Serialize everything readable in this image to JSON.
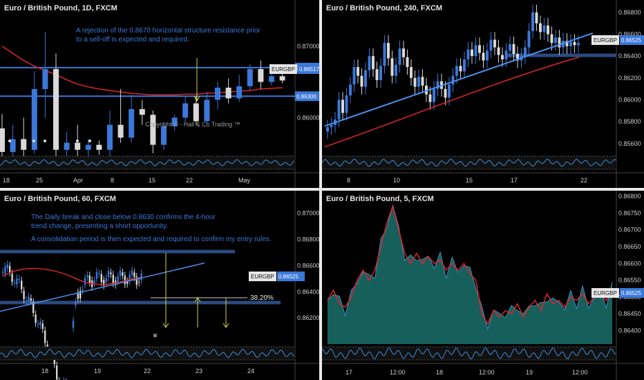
{
  "panels": [
    {
      "title": "Euro / British Pound, 1D, FXCM",
      "notes": [
        "A rejection of the 0.8670 horizontal structure resistance prior",
        "to a sell-off is expected and required."
      ],
      "copyright": "Copyright © - Hall & Co Trading ™"
    },
    {
      "title": "Euro / British Pound, 240, FXCM"
    },
    {
      "title": "Euro / British Pound, 60, FXCM",
      "notes": [
        "The Daily break and close below 0.8630 confirms the 4-hour",
        "trend change, presenting a short opportunity.",
        "",
        "A consolidation period is then expected and required to confirm my entry rules."
      ],
      "fib_label": "38.20%"
    },
    {
      "title": "Euro / British Pound, 5, FXCM"
    }
  ],
  "colors": {
    "background": "#000000",
    "bull_candle": "#3b78d9",
    "bear_candle": "#d8d8d8",
    "moving_average": "#e0242a",
    "trendline": "#4a90f0",
    "level_line": "#3b78d9",
    "zone": "#2a4a80",
    "arrow": "#d6d63a",
    "area_fill": "#1f7f7a",
    "area_line": "#3b8fc4",
    "oscillator": "#3b8fe0",
    "axis_text": "#cfcfcf",
    "label_bg": "#3b78d9"
  },
  "chart_data": [
    {
      "type": "candlestick",
      "title": "Euro / British Pound, 1D, FXCM",
      "x_tick_labels": [
        "18",
        "25",
        "Apr",
        "8",
        "15",
        "22",
        "May"
      ],
      "y_tick_labels": [
        "0.87000",
        "0.86000"
      ],
      "ylim": [
        0.855,
        0.8755
      ],
      "levels": [
        {
          "label": "0.86700",
          "value": 0.867
        },
        {
          "label": "0.86300",
          "value": 0.863
        }
      ],
      "price_label": {
        "text": "EURGBP",
        "value": "0.86517"
      },
      "candles": [
        [
          0.8585,
          0.8552,
          0.8605,
          0.854
        ],
        [
          0.8552,
          0.857,
          0.859,
          0.854
        ],
        [
          0.857,
          0.8555,
          0.86,
          0.8545
        ],
        [
          0.8555,
          0.864,
          0.8665,
          0.855
        ],
        [
          0.864,
          0.8668,
          0.872,
          0.86
        ],
        [
          0.8668,
          0.8555,
          0.869,
          0.854
        ],
        [
          0.8555,
          0.8565,
          0.858,
          0.8545
        ],
        [
          0.8565,
          0.8555,
          0.859,
          0.854
        ],
        [
          0.8555,
          0.8562,
          0.857,
          0.8545
        ],
        [
          0.8562,
          0.8555,
          0.8568,
          0.8548
        ],
        [
          0.8555,
          0.859,
          0.861,
          0.8545
        ],
        [
          0.859,
          0.8572,
          0.864,
          0.8565
        ],
        [
          0.8572,
          0.8612,
          0.8632,
          0.8565
        ],
        [
          0.8612,
          0.8604,
          0.8625,
          0.859
        ],
        [
          0.8604,
          0.8562,
          0.861,
          0.855
        ],
        [
          0.8562,
          0.8588,
          0.8594,
          0.8555
        ],
        [
          0.8588,
          0.86,
          0.8604,
          0.8582
        ],
        [
          0.86,
          0.862,
          0.863,
          0.8592
        ],
        [
          0.862,
          0.8595,
          0.863,
          0.859
        ],
        [
          0.8595,
          0.8625,
          0.8636,
          0.8592
        ],
        [
          0.8625,
          0.8642,
          0.865,
          0.8612
        ],
        [
          0.8642,
          0.8627,
          0.8655,
          0.862
        ],
        [
          0.8627,
          0.8644,
          0.866,
          0.8622
        ],
        [
          0.8644,
          0.8668,
          0.8675,
          0.8638
        ],
        [
          0.8668,
          0.865,
          0.868,
          0.864
        ],
        [
          0.865,
          0.8658,
          0.8662,
          0.8645
        ],
        [
          0.8658,
          0.8652,
          0.8662,
          0.8648
        ]
      ],
      "moving_average": [
        0.87,
        0.869,
        0.868,
        0.8672,
        0.8666,
        0.866,
        0.8653,
        0.8647,
        0.8643,
        0.864,
        0.8638,
        0.8636,
        0.8634,
        0.8633,
        0.8632,
        0.8632,
        0.8632,
        0.8633,
        0.8633,
        0.8634,
        0.8635,
        0.8636,
        0.8637,
        0.8638,
        0.864,
        0.8641,
        0.8642
      ]
    },
    {
      "type": "candlestick",
      "title": "Euro / British Pound, 240, FXCM",
      "x_tick_labels": [
        "8",
        "10",
        "15",
        "17",
        "22"
      ],
      "y_tick_labels": [
        "0.86800",
        "0.86600",
        "0.86400",
        "0.86200",
        "0.86000",
        "0.85800",
        "0.85600"
      ],
      "ylim": [
        0.8551,
        0.8685
      ],
      "price_label": {
        "text": "EURGBP",
        "value": "0.86525"
      },
      "trend_close": [
        0.8575,
        0.8577,
        0.8582,
        0.86,
        0.8588,
        0.8604,
        0.8614,
        0.863,
        0.8622,
        0.8612,
        0.8627,
        0.864,
        0.8628,
        0.8618,
        0.8631,
        0.8652,
        0.8638,
        0.8622,
        0.8632,
        0.8647,
        0.8639,
        0.863,
        0.862,
        0.8612,
        0.8621,
        0.8613,
        0.8605,
        0.8598,
        0.861,
        0.8617,
        0.861,
        0.8602,
        0.8614,
        0.8622,
        0.8631,
        0.8626,
        0.8637,
        0.8646,
        0.864,
        0.865,
        0.8643,
        0.8636,
        0.8645,
        0.8655,
        0.8648,
        0.8641,
        0.8637,
        0.8645,
        0.8651,
        0.8642,
        0.8636,
        0.864,
        0.8648,
        0.8663,
        0.868,
        0.867,
        0.8662,
        0.8668,
        0.866,
        0.8652,
        0.8657,
        0.8648,
        0.8654,
        0.8649,
        0.8653,
        0.865,
        0.8652
      ],
      "moving_average": [
        0.8557,
        0.8639
      ],
      "trendline": [
        0.8576,
        0.8661
      ],
      "zone": 0.8641
    },
    {
      "type": "candlestick",
      "title": "Euro / British Pound, 60, FXCM",
      "x_tick_labels": [
        "18",
        "19",
        "22",
        "23",
        "24"
      ],
      "y_tick_labels": [
        "0.87000",
        "0.86800",
        "0.86600",
        "0.86400",
        "0.86200"
      ],
      "ylim": [
        0.86,
        0.8712
      ],
      "price_label": {
        "text": "EURGBP",
        "value": "0.86525"
      },
      "zones": [
        0.8671,
        0.8632
      ],
      "trendline": [
        0.8625,
        0.8662
      ]
    },
    {
      "type": "area",
      "title": "Euro / British Pound, 5, FXCM",
      "x_tick_labels": [
        "17",
        "12:00",
        "18",
        "12:00",
        "19",
        "12:00"
      ],
      "y_tick_labels": [
        "0.86800",
        "0.86750",
        "0.86700",
        "0.86650",
        "0.86600",
        "0.86550",
        "0.86500",
        "0.86450",
        "0.86400"
      ],
      "ylim": [
        0.8636,
        0.868
      ],
      "price_label": {
        "text": "EURGBP",
        "value": "0.86525"
      },
      "series": [
        0.8649,
        0.8652,
        0.8648,
        0.8647,
        0.865,
        0.8655,
        0.8658,
        0.8655,
        0.8658,
        0.8665,
        0.8672,
        0.8677,
        0.867,
        0.8663,
        0.866,
        0.8663,
        0.866,
        0.8662,
        0.866,
        0.8661,
        0.8658,
        0.866,
        0.8658,
        0.866,
        0.8657,
        0.8655,
        0.8645,
        0.8642,
        0.8646,
        0.8644,
        0.8646,
        0.8645,
        0.8648,
        0.8644,
        0.8647,
        0.8649,
        0.8646,
        0.8651,
        0.8648,
        0.8649,
        0.8647,
        0.865,
        0.8649,
        0.8651,
        0.8648,
        0.865,
        0.8651,
        0.8649,
        0.8652
      ]
    }
  ]
}
